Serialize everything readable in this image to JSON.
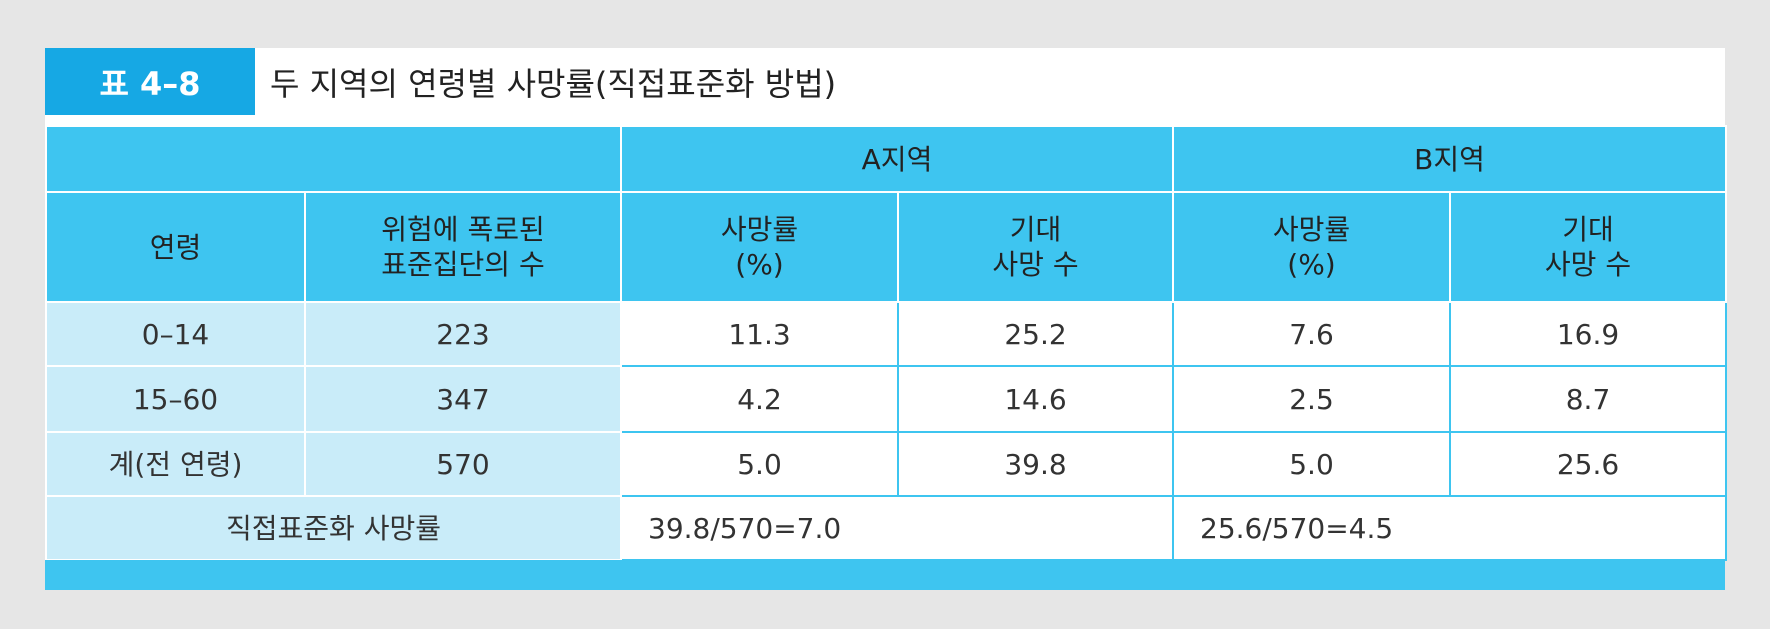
{
  "header": {
    "label": "표 4–8",
    "title": "두 지역의 연령별 사망률(직접표준화 방법)"
  },
  "table": {
    "group_headers": [
      "A지역",
      "B지역"
    ],
    "columns": [
      "연령",
      "위험에 폭로된\n표준집단의 수",
      "사망률\n(%)",
      "기대\n사망 수",
      "사망률\n(%)",
      "기대\n사망 수"
    ],
    "rows": [
      [
        "0–14",
        "223",
        "11.3",
        "25.2",
        "7.6",
        "16.9"
      ],
      [
        "15–60",
        "347",
        "4.2",
        "14.6",
        "2.5",
        "8.7"
      ],
      [
        "계(전 연령)",
        "570",
        "5.0",
        "39.8",
        "5.0",
        "25.6"
      ]
    ],
    "footer": {
      "label": "직접표준화 사망률",
      "a": "39.8/570=7.0",
      "b": "25.6/570=4.5"
    }
  }
}
